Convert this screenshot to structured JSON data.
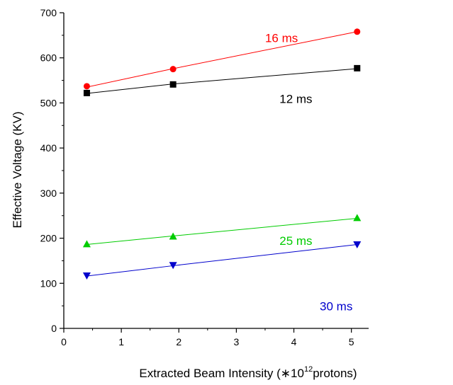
{
  "chart_data": {
    "type": "scatter",
    "title": "",
    "xlabel_main": "Extracted Beam Intensity (",
    "xlabel_star": "∗10",
    "xlabel_sup": "12",
    "xlabel_tail": "protons)",
    "ylabel": "Effective Voltage (KV)",
    "xlim": [
      0,
      5.3
    ],
    "ylim": [
      0,
      700
    ],
    "xticks": [
      0,
      1,
      2,
      3,
      4,
      5
    ],
    "yticks": [
      0,
      100,
      200,
      300,
      400,
      500,
      600,
      700
    ],
    "x": [
      0.4,
      1.9,
      5.1
    ],
    "series": [
      {
        "name": "16 ms",
        "marker": "circle",
        "color": "#ff0000",
        "values": [
          537,
          575,
          658
        ],
        "fit": [
          535,
          576,
          658
        ]
      },
      {
        "name": "12 ms",
        "marker": "square",
        "color": "#000000",
        "values": [
          522,
          541,
          577
        ],
        "fit": [
          521,
          542,
          576
        ]
      },
      {
        "name": "25 ms",
        "marker": "triangle-up",
        "color": "#00cc00",
        "values": [
          187,
          204,
          245
        ],
        "fit": [
          186,
          205,
          244
        ]
      },
      {
        "name": "30 ms",
        "marker": "triangle-down",
        "color": "#0000cc",
        "values": [
          117,
          140,
          186
        ],
        "fit": [
          116,
          139,
          186
        ]
      }
    ],
    "labels": [
      {
        "series": 0,
        "x": 3.5,
        "y": 635
      },
      {
        "series": 1,
        "x": 3.75,
        "y": 500
      },
      {
        "series": 2,
        "x": 3.75,
        "y": 185
      },
      {
        "series": 3,
        "x": 4.45,
        "y": 40
      }
    ],
    "grid": false,
    "legend": "none"
  }
}
